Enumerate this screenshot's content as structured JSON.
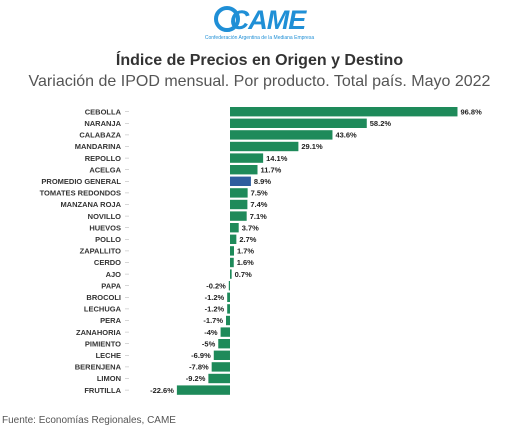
{
  "logo": {
    "text": "CAME",
    "subtitle": "Confederación Argentina de la Mediana Empresa"
  },
  "title": "Índice de Precios en Origen y Destino",
  "subtitle": "Variación de IPOD mensual. Por producto. Total país. Mayo 2022",
  "source": "Fuente: Economías Regionales, CAME",
  "colors": {
    "bar": "#1e8a5a",
    "highlight": "#2f5d9e"
  },
  "chart_data": {
    "type": "bar",
    "orientation": "horizontal",
    "categories": [
      "CEBOLLA",
      "NARANJA",
      "CALABAZA",
      "MANDARINA",
      "REPOLLO",
      "ACELGA",
      "PROMEDIO GENERAL",
      "TOMATES REDONDOS",
      "MANZANA ROJA",
      "NOVILLO",
      "HUEVOS",
      "POLLO",
      "ZAPALLITO",
      "CERDO",
      "AJO",
      "PAPA",
      "BROCOLI",
      "LECHUGA",
      "PERA",
      "ZANAHORIA",
      "PIMIENTO",
      "LECHE",
      "BERENJENA",
      "LIMON",
      "FRUTILLA"
    ],
    "values": [
      96.8,
      58.2,
      43.6,
      29.1,
      14.1,
      11.7,
      8.9,
      7.5,
      7.4,
      7.1,
      3.7,
      2.7,
      1.7,
      1.6,
      0.7,
      -0.2,
      -1.2,
      -1.2,
      -1.7,
      -4,
      -5,
      -6.9,
      -7.8,
      -9.2,
      -22.6
    ],
    "labels": [
      "96.8%",
      "58.2%",
      "43.6%",
      "29.1%",
      "14.1%",
      "11.7%",
      "8.9%",
      "7.5%",
      "7.4%",
      "7.1%",
      "3.7%",
      "2.7%",
      "1.7%",
      "1.6%",
      "0.7%",
      "-0.2%",
      "-1.2%",
      "-1.2%",
      "-1.7%",
      "-4%",
      "-5%",
      "-6.9%",
      "-7.8%",
      "-9.2%",
      "-22.6%"
    ],
    "highlight": "PROMEDIO GENERAL",
    "xlim": [
      -22.6,
      96.8
    ]
  }
}
